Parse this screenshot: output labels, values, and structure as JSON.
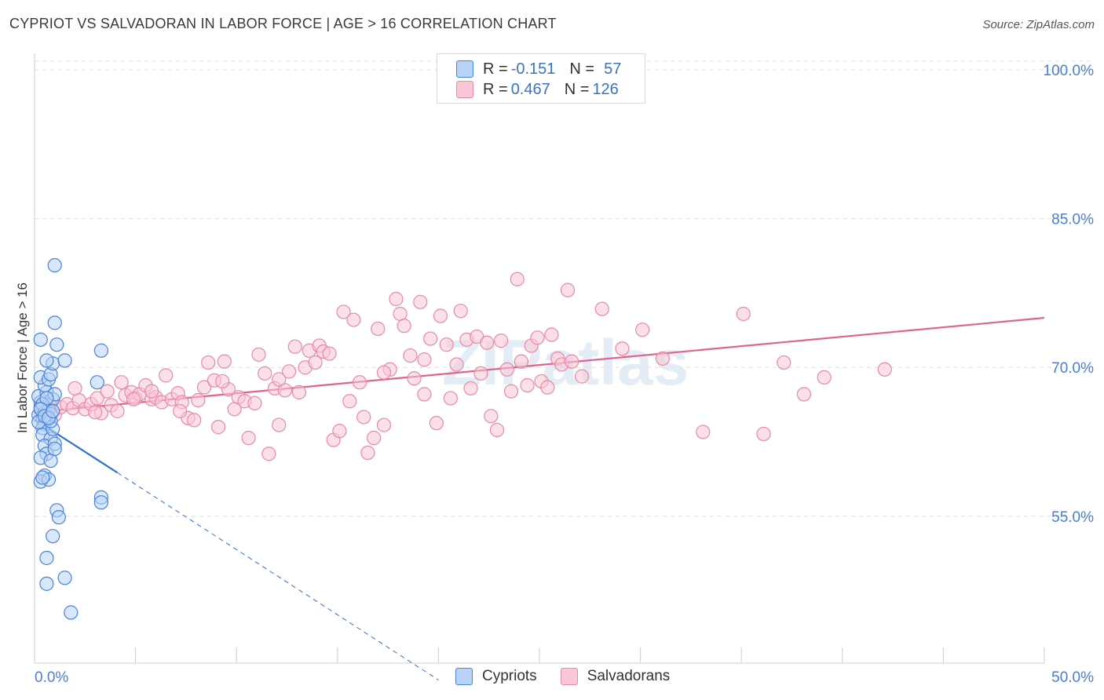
{
  "title": "CYPRIOT VS SALVADORAN IN LABOR FORCE | AGE > 16 CORRELATION CHART",
  "source": "Source: ZipAtlas.com",
  "legend": {
    "row1": {
      "r_label": "R = ",
      "r_value": "-0.151",
      "n_label": "N = ",
      "n_value": "57"
    },
    "row2": {
      "r_label": "R = ",
      "r_value": "0.467",
      "n_label": "N = ",
      "n_value": "126"
    }
  },
  "bottom_legend": {
    "series1": "Cypriots",
    "series2": "Salvadorans"
  },
  "colors": {
    "cypriot_fill": "#b8d3f5",
    "cypriot_stroke": "#4a84d6",
    "cypriot_line": "#2f6fcf",
    "salvadoran_fill": "#f9c7d6",
    "salvadoran_stroke": "#e58aa8",
    "salvadoran_line": "#e0638c",
    "tick_text": "#4a7fd0",
    "grid": "#dddddd"
  },
  "chart_data": {
    "type": "scatter",
    "title": "CYPRIOT VS SALVADORAN IN LABOR FORCE | AGE > 16 CORRELATION CHART",
    "ylabel": "In Labor Force | Age > 16",
    "xlabel": "",
    "xlim": [
      0,
      50
    ],
    "ylim": [
      40.2,
      101.5
    ],
    "x_tick_labels": [
      "0.0%",
      "50.0%"
    ],
    "y_ticks": [
      100,
      85,
      70,
      55
    ],
    "y_tick_labels": [
      "100.0%",
      "85.0%",
      "70.0%",
      "55.0%"
    ],
    "series": [
      {
        "name": "Cypriots",
        "r": -0.151,
        "n": 57,
        "trend": {
          "x": [
            0.05,
            4.1
          ],
          "y": [
            64.7,
            59.4
          ],
          "dashed_to": [
            20.0,
            38.5
          ]
        },
        "points": [
          [
            0.2,
            65.2
          ],
          [
            0.3,
            66.0
          ],
          [
            0.4,
            64.8
          ],
          [
            0.5,
            65.5
          ],
          [
            0.6,
            65.0
          ],
          [
            0.3,
            66.5
          ],
          [
            0.5,
            64.3
          ],
          [
            0.7,
            65.8
          ],
          [
            0.8,
            65.3
          ],
          [
            0.4,
            63.9
          ],
          [
            0.2,
            67.1
          ],
          [
            0.6,
            67.5
          ],
          [
            0.9,
            66.8
          ],
          [
            0.5,
            68.2
          ],
          [
            0.3,
            69.0
          ],
          [
            0.7,
            68.8
          ],
          [
            1.0,
            67.3
          ],
          [
            0.8,
            69.3
          ],
          [
            0.9,
            70.4
          ],
          [
            0.6,
            70.7
          ],
          [
            1.5,
            70.7
          ],
          [
            1.1,
            72.3
          ],
          [
            0.3,
            72.8
          ],
          [
            1.0,
            74.5
          ],
          [
            1.0,
            80.3
          ],
          [
            3.3,
            71.7
          ],
          [
            3.1,
            68.5
          ],
          [
            0.4,
            63.2
          ],
          [
            0.8,
            62.8
          ],
          [
            0.9,
            63.8
          ],
          [
            0.5,
            62.1
          ],
          [
            1.0,
            62.3
          ],
          [
            0.6,
            61.3
          ],
          [
            0.3,
            60.9
          ],
          [
            0.8,
            60.6
          ],
          [
            0.5,
            59.1
          ],
          [
            0.3,
            58.5
          ],
          [
            0.7,
            58.7
          ],
          [
            0.4,
            58.9
          ],
          [
            1.1,
            55.6
          ],
          [
            1.2,
            54.9
          ],
          [
            0.9,
            53.0
          ],
          [
            0.6,
            50.8
          ],
          [
            0.6,
            48.2
          ],
          [
            1.5,
            48.8
          ],
          [
            1.8,
            45.3
          ],
          [
            3.3,
            56.9
          ],
          [
            3.3,
            56.4
          ],
          [
            0.2,
            64.5
          ],
          [
            0.4,
            66.3
          ],
          [
            0.6,
            66.9
          ],
          [
            0.8,
            64.6
          ],
          [
            0.3,
            65.8
          ],
          [
            0.5,
            65.1
          ],
          [
            0.7,
            64.9
          ],
          [
            1.0,
            61.8
          ],
          [
            0.9,
            65.6
          ]
        ]
      },
      {
        "name": "Salvadorans",
        "r": 0.467,
        "n": 126,
        "trend": {
          "x": [
            0.05,
            50
          ],
          "y": [
            65.5,
            75.0
          ]
        },
        "points": [
          [
            0.4,
            65.5
          ],
          [
            0.6,
            64.9
          ],
          [
            0.8,
            66.2
          ],
          [
            1.0,
            65.2
          ],
          [
            1.3,
            66.0
          ],
          [
            1.6,
            66.3
          ],
          [
            1.9,
            65.9
          ],
          [
            2.2,
            66.7
          ],
          [
            2.5,
            65.8
          ],
          [
            2.8,
            66.3
          ],
          [
            3.1,
            66.9
          ],
          [
            3.3,
            65.4
          ],
          [
            3.6,
            67.6
          ],
          [
            3.8,
            66.2
          ],
          [
            4.1,
            65.6
          ],
          [
            4.3,
            68.5
          ],
          [
            4.5,
            67.2
          ],
          [
            4.8,
            67.5
          ],
          [
            5.0,
            66.9
          ],
          [
            5.2,
            67.3
          ],
          [
            5.5,
            68.2
          ],
          [
            5.8,
            66.8
          ],
          [
            6.0,
            67.0
          ],
          [
            6.3,
            66.5
          ],
          [
            6.5,
            69.2
          ],
          [
            6.8,
            66.8
          ],
          [
            7.1,
            67.4
          ],
          [
            7.3,
            66.5
          ],
          [
            7.6,
            64.9
          ],
          [
            7.9,
            64.7
          ],
          [
            8.1,
            66.7
          ],
          [
            8.4,
            68.0
          ],
          [
            8.6,
            70.5
          ],
          [
            8.9,
            68.7
          ],
          [
            9.1,
            64.0
          ],
          [
            9.4,
            70.6
          ],
          [
            9.6,
            67.8
          ],
          [
            9.9,
            65.8
          ],
          [
            10.1,
            67.0
          ],
          [
            10.4,
            66.6
          ],
          [
            10.6,
            62.9
          ],
          [
            10.9,
            66.4
          ],
          [
            11.1,
            71.3
          ],
          [
            11.4,
            69.4
          ],
          [
            11.6,
            61.3
          ],
          [
            11.9,
            67.9
          ],
          [
            12.1,
            64.2
          ],
          [
            12.4,
            67.7
          ],
          [
            12.6,
            69.6
          ],
          [
            12.9,
            72.1
          ],
          [
            13.1,
            67.5
          ],
          [
            13.4,
            70.0
          ],
          [
            13.6,
            71.7
          ],
          [
            13.9,
            70.5
          ],
          [
            14.1,
            72.2
          ],
          [
            14.3,
            71.6
          ],
          [
            14.6,
            71.4
          ],
          [
            14.8,
            62.7
          ],
          [
            15.1,
            63.6
          ],
          [
            15.3,
            75.6
          ],
          [
            15.6,
            66.6
          ],
          [
            15.8,
            74.8
          ],
          [
            16.1,
            68.5
          ],
          [
            16.3,
            65.0
          ],
          [
            16.5,
            61.4
          ],
          [
            16.8,
            62.9
          ],
          [
            17.0,
            73.9
          ],
          [
            17.3,
            64.2
          ],
          [
            17.6,
            69.8
          ],
          [
            17.9,
            76.9
          ],
          [
            18.1,
            75.4
          ],
          [
            18.3,
            74.2
          ],
          [
            18.6,
            71.2
          ],
          [
            18.8,
            68.9
          ],
          [
            19.1,
            76.6
          ],
          [
            19.3,
            70.8
          ],
          [
            19.6,
            72.9
          ],
          [
            19.9,
            64.4
          ],
          [
            20.1,
            75.2
          ],
          [
            20.4,
            72.3
          ],
          [
            20.6,
            66.9
          ],
          [
            20.9,
            70.3
          ],
          [
            21.1,
            75.7
          ],
          [
            21.4,
            72.8
          ],
          [
            21.6,
            67.9
          ],
          [
            21.9,
            73.1
          ],
          [
            22.1,
            69.4
          ],
          [
            22.4,
            72.5
          ],
          [
            22.6,
            65.1
          ],
          [
            22.9,
            63.7
          ],
          [
            23.1,
            72.7
          ],
          [
            23.4,
            69.8
          ],
          [
            23.6,
            67.6
          ],
          [
            23.9,
            78.9
          ],
          [
            24.1,
            70.6
          ],
          [
            24.4,
            68.2
          ],
          [
            24.6,
            72.2
          ],
          [
            24.9,
            73.0
          ],
          [
            25.1,
            68.6
          ],
          [
            25.4,
            68.0
          ],
          [
            25.6,
            73.3
          ],
          [
            25.9,
            70.9
          ],
          [
            26.1,
            70.3
          ],
          [
            26.4,
            77.8
          ],
          [
            26.6,
            70.6
          ],
          [
            27.1,
            69.1
          ],
          [
            28.1,
            75.9
          ],
          [
            29.1,
            71.9
          ],
          [
            30.1,
            73.8
          ],
          [
            31.1,
            70.9
          ],
          [
            33.1,
            63.5
          ],
          [
            35.1,
            75.4
          ],
          [
            36.1,
            63.3
          ],
          [
            37.1,
            70.5
          ],
          [
            38.1,
            67.3
          ],
          [
            39.1,
            69.0
          ],
          [
            42.1,
            69.8
          ],
          [
            19.3,
            67.3
          ],
          [
            17.3,
            69.5
          ],
          [
            12.1,
            68.8
          ],
          [
            9.3,
            68.6
          ],
          [
            7.2,
            65.6
          ],
          [
            5.8,
            67.6
          ],
          [
            3.0,
            65.5
          ],
          [
            2.0,
            67.9
          ],
          [
            4.9,
            66.8
          ]
        ]
      }
    ]
  }
}
